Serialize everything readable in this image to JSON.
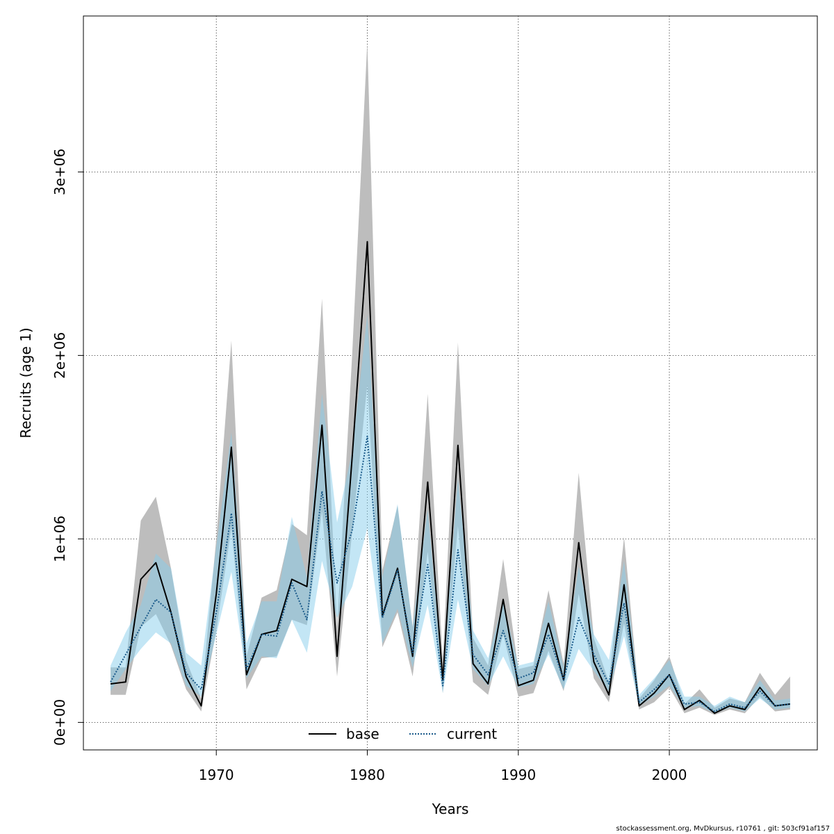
{
  "footer": "stockassessment.org, MvDkursus, r10761 , git: 503cf91af157",
  "chart_data": {
    "type": "line",
    "xlabel": "Years",
    "ylabel": "Recruits (age 1)",
    "xlim": [
      1961.2,
      2009.8
    ],
    "ylim": [
      -150000,
      3850000
    ],
    "xticks": [
      1970,
      1980,
      1990,
      2000
    ],
    "yticks": [
      0,
      1000000,
      2000000,
      3000000
    ],
    "ytick_labels": [
      "0e+00",
      "1e+06",
      "2e+06",
      "3e+06"
    ],
    "grid": true,
    "legend_position": "bottom",
    "colors": {
      "base_line": "#000000",
      "base_band": "#bdbdbd",
      "current_line": "#1a5a8a",
      "current_band": "#87ceeb"
    },
    "x": [
      1963,
      1964,
      1965,
      1966,
      1967,
      1968,
      1969,
      1970,
      1971,
      1972,
      1973,
      1974,
      1975,
      1976,
      1977,
      1978,
      1979,
      1980,
      1981,
      1982,
      1983,
      1984,
      1985,
      1986,
      1987,
      1988,
      1989,
      1990,
      1991,
      1992,
      1993,
      1994,
      1995,
      1996,
      1997,
      1998,
      1999,
      2000,
      2001,
      2002,
      2003,
      2004,
      2005,
      2006,
      2007,
      2008
    ],
    "series": [
      {
        "name": "base",
        "style": "solid",
        "values": [
          210000,
          220000,
          780000,
          870000,
          600000,
          250000,
          90000,
          700000,
          1500000,
          260000,
          480000,
          500000,
          780000,
          740000,
          1620000,
          360000,
          1450000,
          2620000,
          580000,
          840000,
          360000,
          1310000,
          230000,
          1510000,
          320000,
          210000,
          670000,
          200000,
          230000,
          540000,
          230000,
          980000,
          330000,
          150000,
          750000,
          90000,
          160000,
          260000,
          70000,
          120000,
          50000,
          90000,
          70000,
          190000,
          90000,
          100000
        ],
        "lower": [
          150000,
          150000,
          520000,
          590000,
          420000,
          180000,
          60000,
          500000,
          1060000,
          180000,
          350000,
          360000,
          560000,
          530000,
          1150000,
          250000,
          1040000,
          1840000,
          410000,
          600000,
          250000,
          930000,
          160000,
          1070000,
          220000,
          150000,
          480000,
          140000,
          160000,
          390000,
          170000,
          700000,
          240000,
          110000,
          540000,
          70000,
          110000,
          190000,
          50000,
          80000,
          40000,
          70000,
          50000,
          140000,
          60000,
          70000
        ],
        "upper": [
          300000,
          300000,
          1100000,
          1230000,
          840000,
          340000,
          130000,
          1000000,
          2080000,
          360000,
          680000,
          720000,
          1080000,
          1020000,
          2310000,
          520000,
          2010000,
          3710000,
          830000,
          1180000,
          520000,
          1790000,
          340000,
          2070000,
          460000,
          310000,
          890000,
          290000,
          310000,
          720000,
          320000,
          1360000,
          460000,
          220000,
          1010000,
          130000,
          230000,
          360000,
          100000,
          180000,
          80000,
          130000,
          110000,
          270000,
          150000,
          250000
        ]
      },
      {
        "name": "current",
        "style": "dotted",
        "values": [
          220000,
          370000,
          520000,
          670000,
          600000,
          270000,
          180000,
          600000,
          1140000,
          290000,
          480000,
          470000,
          760000,
          560000,
          1260000,
          760000,
          1050000,
          1560000,
          570000,
          830000,
          380000,
          860000,
          200000,
          940000,
          370000,
          260000,
          500000,
          240000,
          270000,
          480000,
          230000,
          570000,
          370000,
          210000,
          650000,
          110000,
          180000,
          260000,
          100000,
          110000,
          60000,
          100000,
          80000,
          170000,
          90000,
          100000
        ],
        "lower": [
          170000,
          290000,
          400000,
          490000,
          430000,
          200000,
          140000,
          480000,
          820000,
          240000,
          360000,
          350000,
          560000,
          380000,
          880000,
          570000,
          740000,
          1060000,
          430000,
          620000,
          300000,
          640000,
          160000,
          670000,
          290000,
          200000,
          360000,
          190000,
          210000,
          370000,
          180000,
          400000,
          280000,
          170000,
          470000,
          90000,
          140000,
          200000,
          80000,
          90000,
          50000,
          80000,
          60000,
          130000,
          70000,
          80000
        ],
        "upper": [
          310000,
          490000,
          640000,
          920000,
          840000,
          380000,
          310000,
          960000,
          1580000,
          430000,
          660000,
          660000,
          1120000,
          790000,
          1790000,
          1090000,
          1480000,
          2220000,
          790000,
          1190000,
          520000,
          1160000,
          260000,
          1330000,
          500000,
          350000,
          660000,
          310000,
          330000,
          660000,
          300000,
          850000,
          480000,
          340000,
          880000,
          150000,
          240000,
          340000,
          140000,
          140000,
          90000,
          140000,
          110000,
          230000,
          120000,
          130000
        ]
      }
    ]
  }
}
